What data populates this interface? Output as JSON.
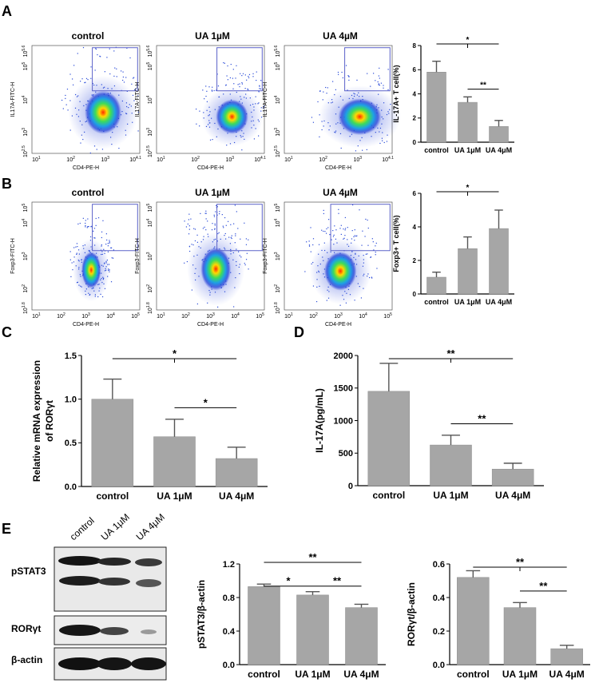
{
  "panel_labels": [
    "A",
    "B",
    "C",
    "D",
    "E"
  ],
  "flow": {
    "A": {
      "titles": [
        "control",
        "UA 1µM",
        "UA 4µM"
      ],
      "y_label": "IL17A-FITC-H",
      "x_label": "CD4-PE-H",
      "y_ticks": [
        "10^5.6",
        "10^5",
        "10^4",
        "10^3",
        "10^2.5"
      ],
      "x_ticks": [
        "10^1",
        "10^2",
        "10^3",
        "10^4.1"
      ]
    },
    "B": {
      "titles": [
        "control",
        "UA 1µM",
        "UA 4µM"
      ],
      "y_label": "Foxp3-FITC-H",
      "x_label": "CD4-PE-H",
      "y_ticks": [
        "10^5",
        "10^4",
        "10^3",
        "10^2",
        "10^1.8"
      ],
      "x_ticks": [
        "10^1",
        "10^2",
        "10^3",
        "10^4",
        "10^5"
      ]
    }
  },
  "chart_data": [
    {
      "id": "A",
      "type": "bar",
      "categories": [
        "control",
        "UA 1μM",
        "UA 4μM"
      ],
      "values": [
        5.8,
        3.3,
        1.3
      ],
      "errors": [
        0.9,
        0.45,
        0.5
      ],
      "ylabel": "IL-17A+ T cell(%)",
      "ylim": [
        0,
        8
      ],
      "yticks": [
        "0",
        "2",
        "4",
        "6",
        "8"
      ],
      "significance": [
        {
          "from": 0,
          "to": 2,
          "label": "*"
        },
        {
          "from": 1,
          "to": 2,
          "label": "**"
        }
      ]
    },
    {
      "id": "B",
      "type": "bar",
      "categories": [
        "control",
        "UA 1μM",
        "UA 4μM"
      ],
      "values": [
        1.0,
        2.7,
        3.9
      ],
      "errors": [
        0.3,
        0.7,
        1.1
      ],
      "ylabel": "Foxp3+ T cell(%)",
      "ylim": [
        0,
        6
      ],
      "yticks": [
        "0",
        "2",
        "4",
        "6"
      ],
      "significance": [
        {
          "from": 0,
          "to": 2,
          "label": "*"
        }
      ]
    },
    {
      "id": "C",
      "type": "bar",
      "categories": [
        "control",
        "UA 1μM",
        "UA 4μM"
      ],
      "values": [
        1.0,
        0.57,
        0.32
      ],
      "errors": [
        0.23,
        0.2,
        0.13
      ],
      "ylabel": "Relative mRNA expression of RORγt",
      "ylim": [
        0,
        1.5
      ],
      "yticks": [
        "0.0",
        "0.5",
        "1.0",
        "1.5"
      ],
      "significance": [
        {
          "from": 0,
          "to": 2,
          "label": "*"
        },
        {
          "from": 1,
          "to": 2,
          "label": "*"
        }
      ]
    },
    {
      "id": "D",
      "type": "bar",
      "categories": [
        "control",
        "UA 1μM",
        "UA 4μM"
      ],
      "values": [
        1450,
        625,
        255
      ],
      "errors": [
        430,
        150,
        90
      ],
      "ylabel": "IL-17A(pg/mL)",
      "ylim": [
        0,
        2000
      ],
      "yticks": [
        "0",
        "500",
        "1000",
        "1500",
        "2000"
      ],
      "significance": [
        {
          "from": 0,
          "to": 2,
          "label": "**"
        },
        {
          "from": 1,
          "to": 2,
          "label": "**"
        }
      ]
    },
    {
      "id": "E1",
      "type": "bar",
      "categories": [
        "control",
        "UA 1μM",
        "UA 4μM"
      ],
      "values": [
        0.93,
        0.83,
        0.68
      ],
      "errors": [
        0.03,
        0.04,
        0.04
      ],
      "ylabel": "pSTAT3/β-actin",
      "ylim": [
        0,
        1.2
      ],
      "yticks": [
        "0.0",
        "0.4",
        "0.8",
        "1.2"
      ],
      "significance": [
        {
          "from": 0,
          "to": 1,
          "label": "*"
        },
        {
          "from": 1,
          "to": 2,
          "label": "**"
        },
        {
          "from": 0,
          "to": 2,
          "label": "**"
        }
      ]
    },
    {
      "id": "E2",
      "type": "bar",
      "categories": [
        "control",
        "UA 1μM",
        "UA 4μM"
      ],
      "values": [
        0.52,
        0.34,
        0.095
      ],
      "errors": [
        0.04,
        0.03,
        0.02
      ],
      "ylabel": "RORγt/β-actin",
      "ylim": [
        0,
        0.6
      ],
      "yticks": [
        "0.0",
        "0.2",
        "0.4",
        "0.6"
      ],
      "significance": [
        {
          "from": 0,
          "to": 2,
          "label": "**"
        },
        {
          "from": 1,
          "to": 2,
          "label": "**"
        }
      ]
    }
  ],
  "western": {
    "lanes": [
      "control",
      "UA 1μM",
      "UA 4μM"
    ],
    "rows": [
      "pSTAT3",
      "RORγt",
      "β-actin"
    ]
  }
}
